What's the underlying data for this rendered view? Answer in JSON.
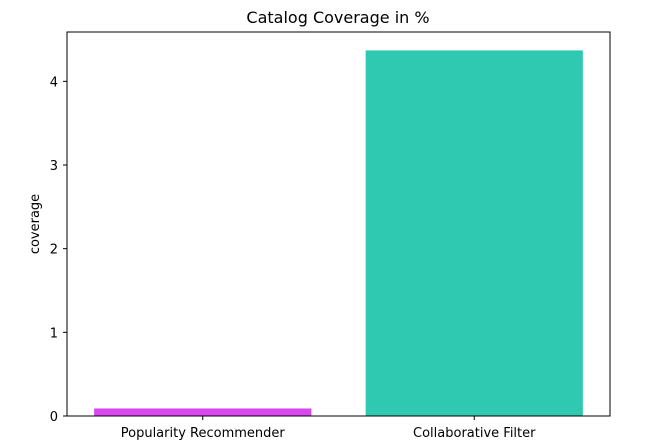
{
  "chart_data": {
    "type": "bar",
    "title": "Catalog Coverage in %",
    "xlabel": "",
    "ylabel": "coverage",
    "categories": [
      "Popularity Recommender",
      "Collaborative Filter"
    ],
    "values": [
      0.09,
      4.37
    ],
    "colors": [
      "#d946ef",
      "#2ec9b0"
    ],
    "ylim": [
      0,
      4.59
    ],
    "yticks": [
      0,
      1,
      2,
      3,
      4
    ],
    "grid": false,
    "legend": "none"
  }
}
